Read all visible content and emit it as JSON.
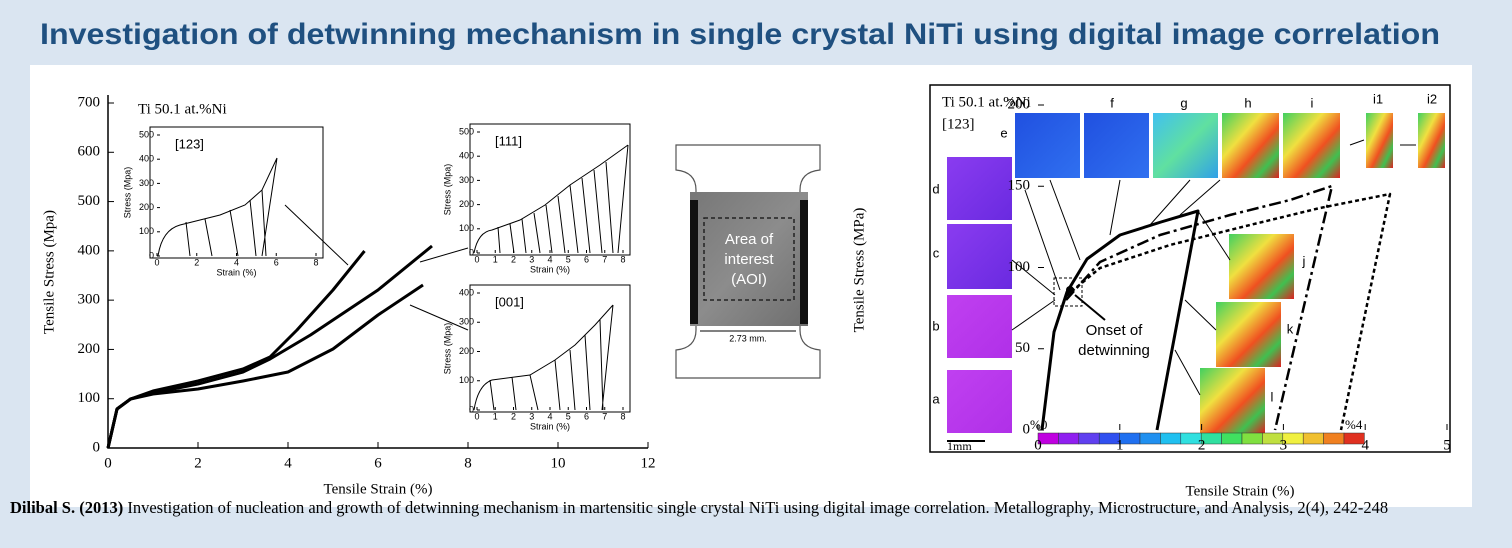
{
  "header": {
    "title": "Investigation of detwinning mechanism in single crystal NiTi using digital image correlation"
  },
  "figure": {
    "left_chart": {
      "annotation": "Ti 50.1 at.%Ni",
      "x_label": "Tensile Strain (%)",
      "y_label": "Tensile Stress (Mpa)",
      "x_ticks": [
        "0",
        "2",
        "4",
        "6",
        "8",
        "10",
        "12"
      ],
      "y_ticks": [
        "0",
        "100",
        "200",
        "300",
        "400",
        "500",
        "600",
        "700"
      ],
      "insets": [
        {
          "label": "[123]",
          "x_label": "Strain (%)",
          "y_label": "Stress (Mpa)",
          "x_ticks": [
            "0",
            "2",
            "4",
            "6",
            "8"
          ],
          "y_ticks": [
            "0",
            "100",
            "200",
            "300",
            "400",
            "500"
          ]
        },
        {
          "label": "[111]",
          "x_label": "Strain (%)",
          "y_label": "Stress (Mpa)",
          "x_ticks": [
            "0",
            "1",
            "2",
            "3",
            "4",
            "5",
            "6",
            "7",
            "8"
          ],
          "y_ticks": [
            "0",
            "100",
            "200",
            "300",
            "400",
            "500"
          ]
        },
        {
          "label": "[001]",
          "x_label": "Strain (%)",
          "y_label": "Stress (Mpa)",
          "x_ticks": [
            "0",
            "1",
            "2",
            "3",
            "4",
            "5",
            "6",
            "7",
            "8"
          ],
          "y_ticks": [
            "0",
            "100",
            "200",
            "300",
            "400"
          ]
        }
      ]
    },
    "specimen": {
      "aoi_label": [
        "Area of",
        "interest",
        "(AOI)"
      ],
      "width_label": "2.73 mm."
    },
    "right_chart": {
      "annotation": [
        "Ti 50.1 at.%Ni",
        "[123]"
      ],
      "x_label": "Tensile Strain (%)",
      "y_label": "Tensile Stress (MPa)",
      "x_ticks": [
        "0",
        "1",
        "2",
        "3",
        "4",
        "5"
      ],
      "y_ticks": [
        "0",
        "50",
        "100",
        "150",
        "200"
      ],
      "panel_labels": [
        "a",
        "b",
        "c",
        "d",
        "e",
        "f",
        "g",
        "h",
        "i",
        "i1",
        "i2",
        "j",
        "k",
        "l"
      ],
      "callout": [
        "Onset of",
        "detwinning"
      ],
      "scale_bar": "1mm",
      "colorbar_labels": [
        "%0",
        "%4"
      ]
    }
  },
  "citation": {
    "authors_year": "Dilibal S. (2013)",
    "text": " Investigation of nucleation and growth of detwinning mechanism in martensitic single crystal NiTi using digital image correlation. Metallography, Microstructure, and Analysis, 2(4), 242-248"
  }
}
